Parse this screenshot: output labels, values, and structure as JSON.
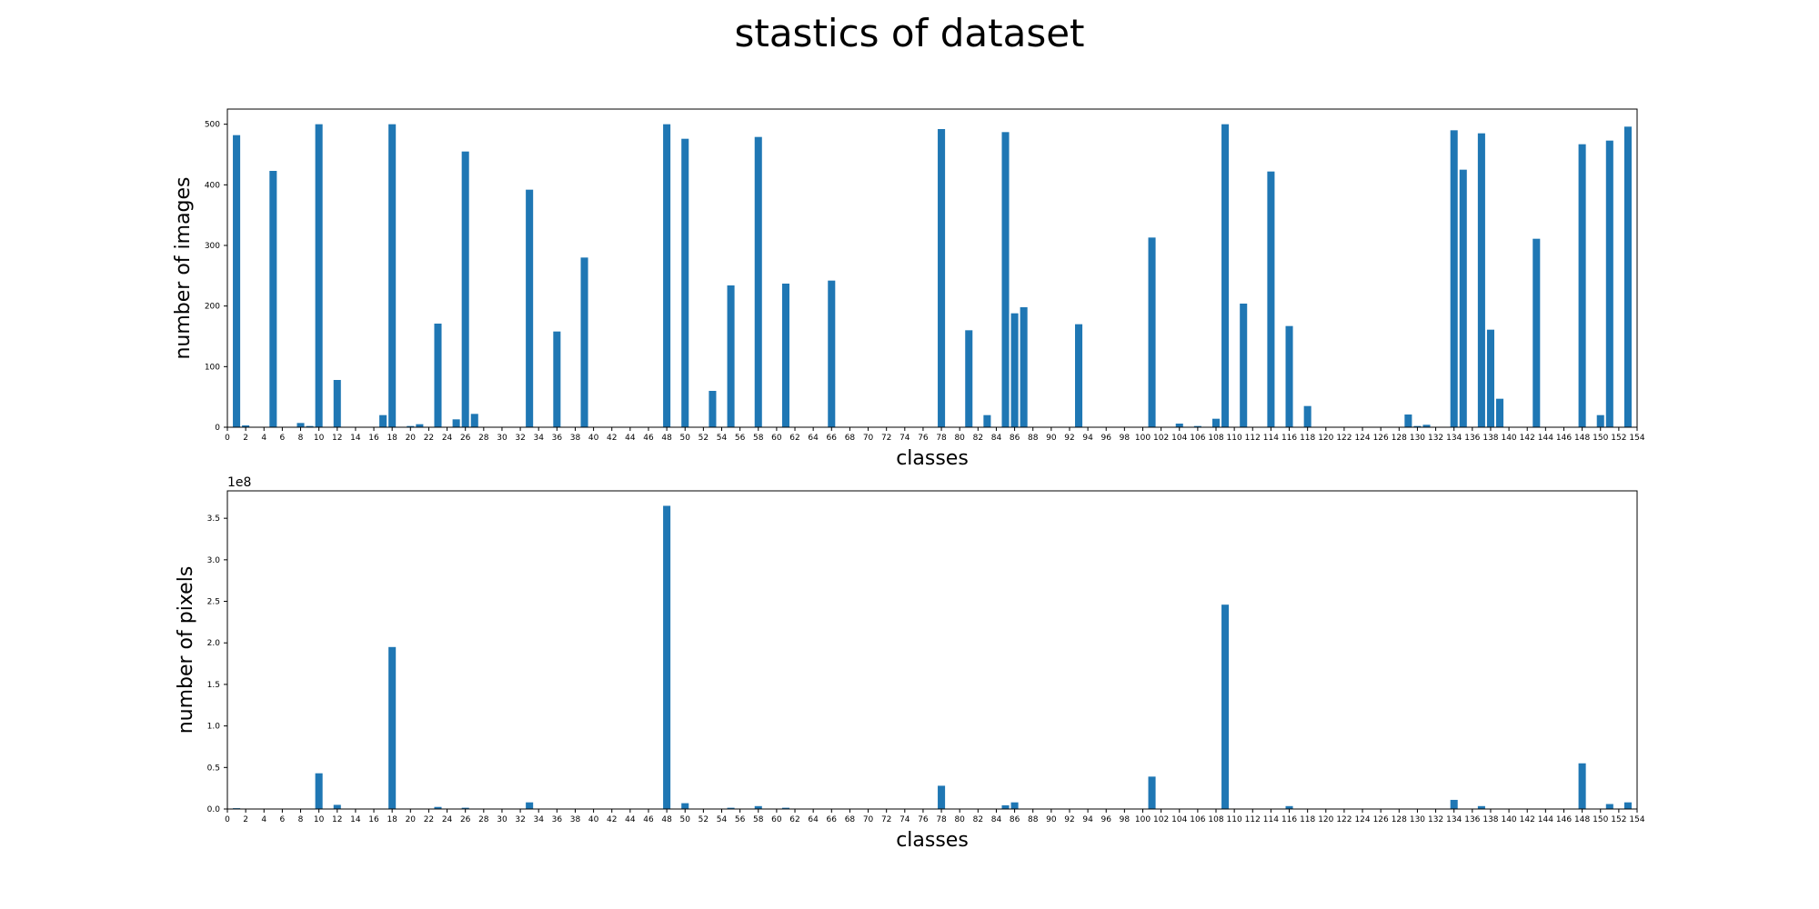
{
  "figure": {
    "title": "stastics of dataset"
  },
  "chart_data": [
    {
      "type": "bar",
      "xlabel": "classes",
      "ylabel": "number of images",
      "xlim": [
        0,
        154
      ],
      "ylim": [
        0,
        525
      ],
      "xticks": [
        0,
        2,
        4,
        6,
        8,
        10,
        12,
        14,
        16,
        18,
        20,
        22,
        24,
        26,
        28,
        30,
        32,
        34,
        36,
        38,
        40,
        42,
        44,
        46,
        48,
        50,
        52,
        54,
        56,
        58,
        60,
        62,
        64,
        66,
        68,
        70,
        72,
        74,
        76,
        78,
        80,
        82,
        84,
        86,
        88,
        90,
        92,
        94,
        96,
        98,
        100,
        102,
        104,
        106,
        108,
        110,
        112,
        114,
        116,
        118,
        120,
        122,
        124,
        126,
        128,
        130,
        132,
        134,
        136,
        138,
        140,
        142,
        144,
        146,
        148,
        150,
        152,
        154
      ],
      "yticks": [
        0,
        100,
        200,
        300,
        400,
        500
      ],
      "ytick_labels": [
        "0",
        "100",
        "200",
        "300",
        "400",
        "500"
      ],
      "offset_label": "",
      "x": [
        1,
        2,
        5,
        8,
        9,
        10,
        12,
        17,
        18,
        20,
        21,
        23,
        25,
        26,
        27,
        33,
        36,
        39,
        48,
        50,
        53,
        55,
        58,
        61,
        66,
        78,
        81,
        83,
        85,
        86,
        87,
        93,
        101,
        104,
        106,
        108,
        109,
        111,
        114,
        116,
        118,
        129,
        130,
        131,
        134,
        135,
        137,
        138,
        139,
        143,
        148,
        150,
        151,
        153
      ],
      "values": [
        482,
        3,
        423,
        7,
        2,
        500,
        78,
        20,
        500,
        2,
        5,
        171,
        13,
        455,
        22,
        392,
        158,
        280,
        500,
        476,
        60,
        234,
        479,
        237,
        242,
        492,
        160,
        20,
        487,
        188,
        198,
        170,
        313,
        6,
        2,
        14,
        500,
        204,
        422,
        167,
        35,
        21,
        2,
        4,
        490,
        425,
        485,
        161,
        47,
        311,
        467,
        20,
        473,
        496
      ]
    },
    {
      "type": "bar",
      "xlabel": "classes",
      "ylabel": "number of pixels",
      "xlim": [
        0,
        154
      ],
      "ylim": [
        0,
        383000000.0
      ],
      "xticks": [
        0,
        2,
        4,
        6,
        8,
        10,
        12,
        14,
        16,
        18,
        20,
        22,
        24,
        26,
        28,
        30,
        32,
        34,
        36,
        38,
        40,
        42,
        44,
        46,
        48,
        50,
        52,
        54,
        56,
        58,
        60,
        62,
        64,
        66,
        68,
        70,
        72,
        74,
        76,
        78,
        80,
        82,
        84,
        86,
        88,
        90,
        92,
        94,
        96,
        98,
        100,
        102,
        104,
        106,
        108,
        110,
        112,
        114,
        116,
        118,
        120,
        122,
        124,
        126,
        128,
        130,
        132,
        134,
        136,
        138,
        140,
        142,
        144,
        146,
        148,
        150,
        152,
        154
      ],
      "yticks": [
        0,
        50000000.0,
        100000000.0,
        150000000.0,
        200000000.0,
        250000000.0,
        300000000.0,
        350000000.0
      ],
      "ytick_labels": [
        "0.0",
        "0.5",
        "1.0",
        "1.5",
        "2.0",
        "2.5",
        "3.0",
        "3.5"
      ],
      "offset_label": "1e8",
      "x": [
        1,
        10,
        12,
        18,
        23,
        26,
        33,
        48,
        50,
        55,
        58,
        61,
        78,
        85,
        86,
        101,
        109,
        116,
        134,
        137,
        148,
        151,
        153
      ],
      "values": [
        1000000.0,
        43000000.0,
        5000000.0,
        195000000.0,
        2500000.0,
        1500000.0,
        8000000.0,
        365000000.0,
        7000000.0,
        1500000.0,
        3500000.0,
        1500000.0,
        28000000.0,
        4500000.0,
        8000000.0,
        39000000.0,
        246000000.0,
        3500000.0,
        11000000.0,
        3500000.0,
        55000000.0,
        6000000.0,
        8000000.0
      ]
    }
  ]
}
